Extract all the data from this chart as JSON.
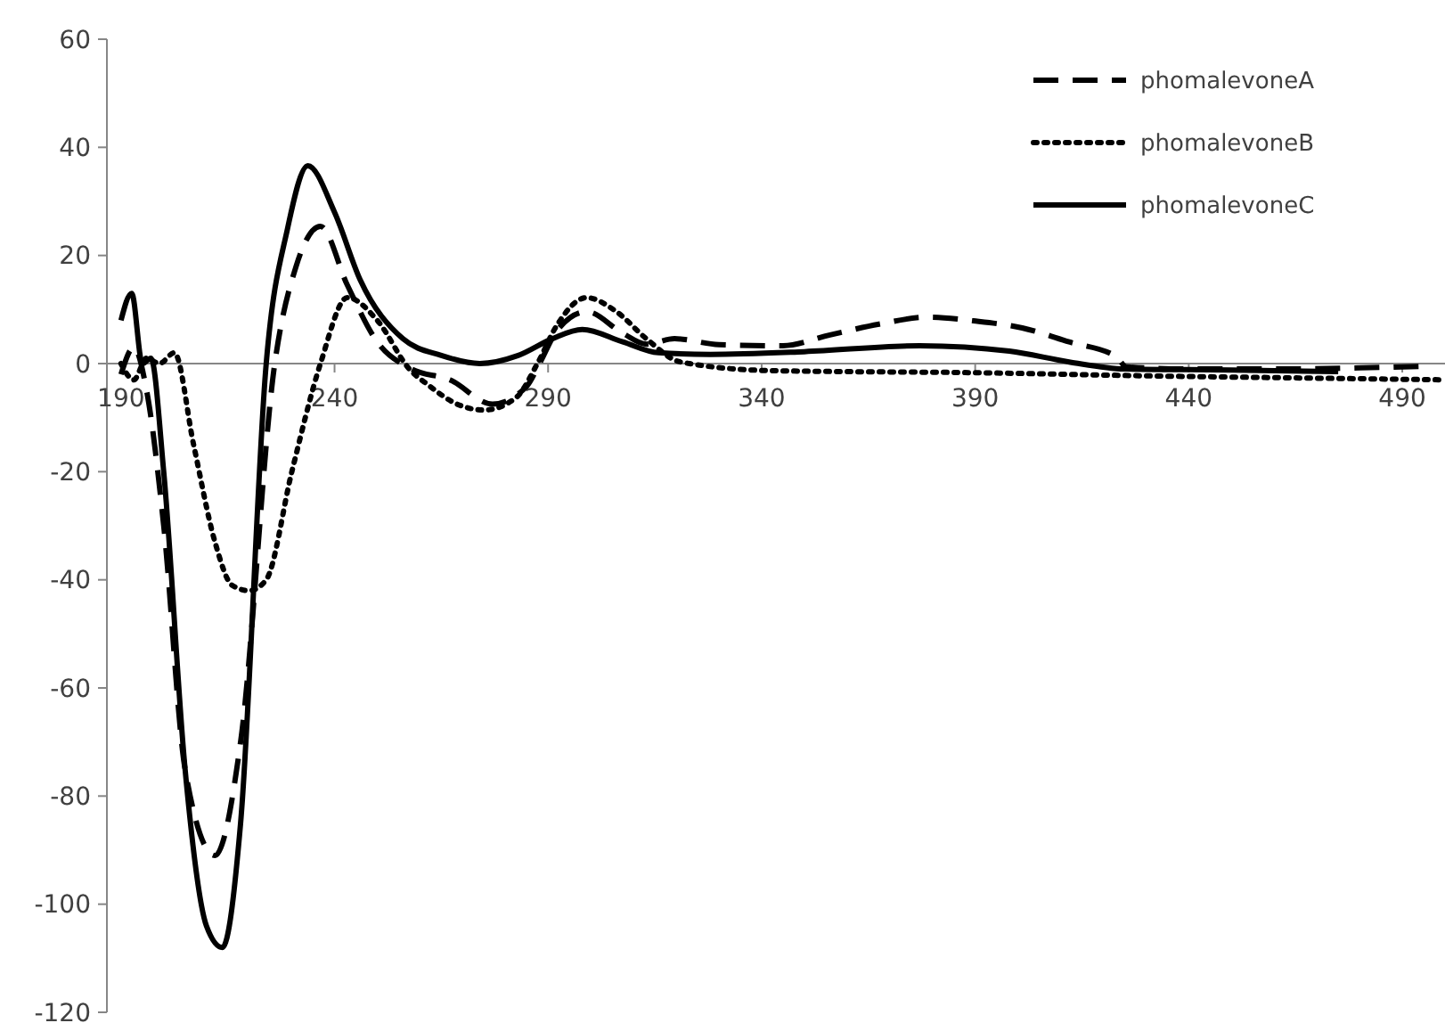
{
  "chart_data": {
    "type": "line",
    "xlim": [
      186.7,
      500
    ],
    "ylim": [
      -120,
      60
    ],
    "xticks": [
      190,
      240,
      290,
      340,
      390,
      440,
      490
    ],
    "yticks": [
      -120,
      -100,
      -80,
      -60,
      -40,
      -20,
      0,
      20,
      40,
      60
    ],
    "grid": false,
    "legend": "top right",
    "marker": "none",
    "series": [
      {
        "name": "phomalevoneA",
        "color": "#000000",
        "line_style": "dashed",
        "x": [
          190,
          193,
          196,
          200,
          205,
          212,
          218,
          226,
          231,
          236.7,
          243,
          250,
          258,
          267,
          277,
          285,
          288,
          292,
          299,
          307.5,
          313,
          319.6,
          330,
          345,
          356,
          367.5,
          379,
          389.6,
          401,
          412,
          423,
          425.4,
          440,
          460,
          480,
          495
        ],
        "values": [
          -2,
          3,
          -5,
          -30,
          -75,
          -91,
          -70,
          0,
          18,
          25.4,
          14.5,
          4,
          -1,
          -3,
          -7.5,
          -4.2,
          0,
          6,
          9.6,
          5.6,
          3.6,
          4.6,
          3.5,
          3.3,
          5.3,
          7.3,
          8.6,
          7.9,
          6.6,
          4,
          1.3,
          -0.6,
          -1,
          -1,
          -0.8,
          -0.5
        ]
      },
      {
        "name": "phomalevoneB",
        "color": "#000000",
        "line_style": "dotted",
        "x": [
          190,
          193,
          196,
          199,
          202.5,
          207,
          212,
          216,
          220,
          224,
          230,
          236.7,
          243,
          250,
          257.5,
          262,
          268.7,
          275,
          282.5,
          287.5,
          292,
          299,
          306,
          313,
          321,
          342,
          391,
          432.5,
          470,
          499
        ],
        "values": [
          0,
          -3,
          1,
          0,
          2,
          -15,
          -33,
          -41,
          -42,
          -40,
          -20,
          0,
          12.2,
          8,
          -1,
          -4,
          -7.5,
          -8.6,
          -6.3,
          0,
          7,
          12.2,
          9.6,
          4.6,
          0.3,
          -1.3,
          -1.7,
          -2.3,
          -2.7,
          -3
        ]
      },
      {
        "name": "phomalevoneC",
        "color": "#000000",
        "line_style": "solid",
        "x": [
          190,
          192.5,
          195,
          197,
          200,
          205,
          210,
          213.75,
          218,
          224,
          229,
          233.75,
          240,
          246,
          256,
          265,
          274,
          283,
          291,
          298,
          307.5,
          315.8,
          328,
          350,
          377,
          398,
          412,
          425,
          450,
          475
        ],
        "values": [
          8,
          13,
          0,
          1,
          -20,
          -75,
          -104,
          -108,
          -85,
          0,
          25,
          36.6,
          28,
          15.5,
          4.6,
          1.5,
          0,
          1.5,
          4.6,
          6.3,
          4,
          2,
          1.7,
          2.2,
          3.3,
          2.3,
          0.3,
          -1,
          -1.2,
          -1.5
        ]
      }
    ]
  }
}
